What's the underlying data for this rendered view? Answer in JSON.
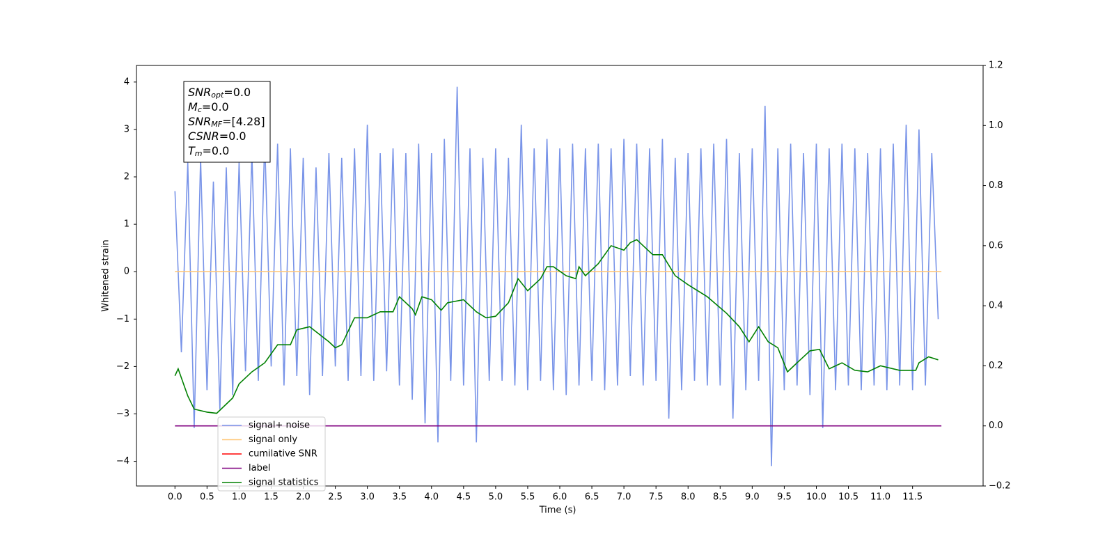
{
  "chart_data": {
    "type": "line",
    "xlabel": "Time (s)",
    "ylabel": "Whitened strain",
    "xlim": [
      -0.6,
      12.6
    ],
    "ylim": [
      -4.52,
      4.35
    ],
    "y2lim": [
      -0.2,
      1.2
    ],
    "xticks": [
      {
        "value": 0,
        "label": "0.0"
      },
      0.5,
      {
        "value": 1,
        "label": "1.0"
      },
      1.5,
      {
        "value": 2,
        "label": "2.0"
      },
      2.5,
      {
        "value": 3,
        "label": "3.0"
      },
      3.5,
      {
        "value": 4,
        "label": "4.0"
      },
      4.5,
      {
        "value": 5,
        "label": "5.0"
      },
      5.5,
      {
        "value": 6,
        "label": "6.0"
      },
      6.5,
      {
        "value": 7,
        "label": "7.0"
      },
      7.5,
      {
        "value": 8,
        "label": "8.0"
      },
      8.5,
      {
        "value": 9,
        "label": "9.0"
      },
      9.5,
      {
        "value": 10,
        "label": "10.0"
      },
      10.5,
      {
        "value": 11,
        "label": "11.0"
      },
      11.5
    ],
    "yticks": [
      {
        "value": -4,
        "label": "−4"
      },
      {
        "value": -3,
        "label": "−3"
      },
      {
        "value": -2,
        "label": "−2"
      },
      {
        "value": -1,
        "label": "−1"
      },
      0,
      1,
      2,
      3,
      4
    ],
    "y2ticks": [
      {
        "value": -0.2,
        "label": "−0.2"
      },
      {
        "value": 0,
        "label": "0.0"
      },
      0.2,
      0.4,
      0.6,
      0.8,
      {
        "value": 1,
        "label": "1.0"
      },
      1.2
    ],
    "annotation": [
      {
        "name": "SNR",
        "sub": "opt",
        "text": "=0.0"
      },
      {
        "name": "M",
        "sub": "c",
        "text": "=0.0"
      },
      {
        "name": "SNR",
        "sub": "MF",
        "text": "=[4.28]"
      },
      {
        "name": "CSNR",
        "text": "=0.0"
      },
      {
        "name": "T",
        "sub": "m",
        "text": "=0.0"
      }
    ],
    "series": [
      {
        "name": "signal+ noise",
        "color": "#7994e8",
        "x": [
          0.0,
          0.1,
          0.2,
          0.3,
          0.4,
          0.5,
          0.6,
          0.7,
          0.8,
          0.9,
          1.0,
          1.1,
          1.2,
          1.3,
          1.4,
          1.5,
          1.6,
          1.7,
          1.8,
          1.9,
          2.0,
          2.1,
          2.2,
          2.3,
          2.4,
          2.5,
          2.6,
          2.7,
          2.8,
          2.9,
          3.0,
          3.1,
          3.2,
          3.3,
          3.4,
          3.5,
          3.6,
          3.7,
          3.8,
          3.9,
          4.0,
          4.1,
          4.2,
          4.3,
          4.4,
          4.5,
          4.6,
          4.7,
          4.8,
          4.9,
          5.0,
          5.1,
          5.2,
          5.3,
          5.4,
          5.5,
          5.6,
          5.7,
          5.8,
          5.9,
          6.0,
          6.1,
          6.2,
          6.3,
          6.4,
          6.5,
          6.6,
          6.7,
          6.8,
          6.9,
          7.0,
          7.1,
          7.2,
          7.3,
          7.4,
          7.5,
          7.6,
          7.7,
          7.8,
          7.9,
          8.0,
          8.1,
          8.2,
          8.3,
          8.4,
          8.5,
          8.6,
          8.7,
          8.8,
          8.9,
          9.0,
          9.1,
          9.2,
          9.3,
          9.4,
          9.5,
          9.6,
          9.7,
          9.8,
          9.9,
          10.0,
          10.1,
          10.2,
          10.3,
          10.4,
          10.5,
          10.6,
          10.7,
          10.8,
          10.9,
          11.0,
          11.1,
          11.2,
          11.3,
          11.4,
          11.5,
          11.6,
          11.7,
          11.8,
          11.9
        ],
        "values": [
          1.7,
          -1.7,
          2.3,
          -3.3,
          2.4,
          -2.5,
          1.9,
          -2.9,
          2.2,
          -2.6,
          2.3,
          -2.1,
          2.5,
          -2.3,
          2.8,
          -2.0,
          2.7,
          -2.4,
          2.6,
          -2.2,
          2.4,
          -2.6,
          2.2,
          -2.2,
          2.5,
          -2.0,
          2.4,
          -2.3,
          2.6,
          -2.2,
          3.1,
          -2.3,
          2.5,
          -2.1,
          2.6,
          -2.4,
          2.5,
          -2.7,
          2.7,
          -3.2,
          2.5,
          -3.6,
          2.8,
          -2.3,
          3.9,
          -2.4,
          2.6,
          -3.6,
          2.4,
          -2.3,
          2.6,
          -2.3,
          2.4,
          -2.4,
          3.1,
          -2.5,
          2.6,
          -2.3,
          2.8,
          -2.5,
          2.6,
          -2.6,
          2.7,
          -2.4,
          2.6,
          -2.3,
          2.7,
          -2.5,
          2.6,
          -2.4,
          2.8,
          -2.2,
          2.7,
          -2.4,
          2.6,
          -2.3,
          2.8,
          -3.1,
          2.4,
          -2.5,
          2.5,
          -2.3,
          2.6,
          -2.4,
          2.7,
          -2.4,
          2.8,
          -3.1,
          2.5,
          -2.5,
          2.6,
          -2.3,
          3.5,
          -4.1,
          2.6,
          -2.5,
          2.7,
          -2.4,
          2.5,
          -2.6,
          2.7,
          -3.3,
          2.6,
          -2.5,
          2.7,
          -2.4,
          2.6,
          -2.5,
          2.5,
          -2.4,
          2.6,
          -2.5,
          2.7,
          -2.4,
          3.1,
          -2.5,
          3.0,
          -2.4,
          2.5,
          -1.0
        ]
      },
      {
        "name": "signal only",
        "color": "#ffc87a",
        "x": [
          0.0,
          11.95
        ],
        "values": [
          0,
          0
        ]
      },
      {
        "name": "cumilative SNR",
        "color": "#ff0000",
        "x": [],
        "values": []
      },
      {
        "name": "label",
        "color": "#800080",
        "axis": "y2",
        "x": [
          0.0,
          11.95
        ],
        "values": [
          0,
          0
        ]
      },
      {
        "name": "signal statistics",
        "color": "#008000",
        "axis": "y2",
        "x": [
          0,
          0.05,
          0.2,
          0.3,
          0.5,
          0.65,
          0.9,
          1.0,
          1.2,
          1.4,
          1.6,
          1.8,
          1.9,
          2.1,
          2.4,
          2.5,
          2.6,
          2.8,
          3.0,
          3.2,
          3.4,
          3.5,
          3.7,
          3.75,
          3.85,
          4.0,
          4.15,
          4.25,
          4.5,
          4.7,
          4.85,
          5.0,
          5.2,
          5.35,
          5.5,
          5.7,
          5.8,
          5.9,
          6.1,
          6.25,
          6.3,
          6.4,
          6.6,
          6.8,
          7.0,
          7.1,
          7.2,
          7.3,
          7.45,
          7.6,
          7.8,
          8.0,
          8.3,
          8.6,
          8.8,
          8.95,
          9.1,
          9.25,
          9.4,
          9.55,
          9.7,
          9.9,
          10.05,
          10.2,
          10.4,
          10.6,
          10.8,
          11.0,
          11.3,
          11.55,
          11.6,
          11.75,
          11.9
        ],
        "values": [
          0.167,
          0.19,
          0.1,
          0.056,
          0.046,
          0.042,
          0.093,
          0.14,
          0.18,
          0.21,
          0.27,
          0.27,
          0.32,
          0.33,
          0.28,
          0.26,
          0.27,
          0.36,
          0.36,
          0.38,
          0.38,
          0.43,
          0.39,
          0.37,
          0.43,
          0.42,
          0.385,
          0.41,
          0.42,
          0.38,
          0.36,
          0.365,
          0.41,
          0.49,
          0.45,
          0.49,
          0.53,
          0.53,
          0.5,
          0.49,
          0.53,
          0.5,
          0.54,
          0.6,
          0.585,
          0.61,
          0.62,
          0.6,
          0.57,
          0.57,
          0.5,
          0.47,
          0.43,
          0.375,
          0.33,
          0.28,
          0.33,
          0.28,
          0.26,
          0.18,
          0.21,
          0.25,
          0.255,
          0.19,
          0.21,
          0.185,
          0.18,
          0.2,
          0.185,
          0.185,
          0.21,
          0.23,
          0.22
        ]
      }
    ]
  }
}
